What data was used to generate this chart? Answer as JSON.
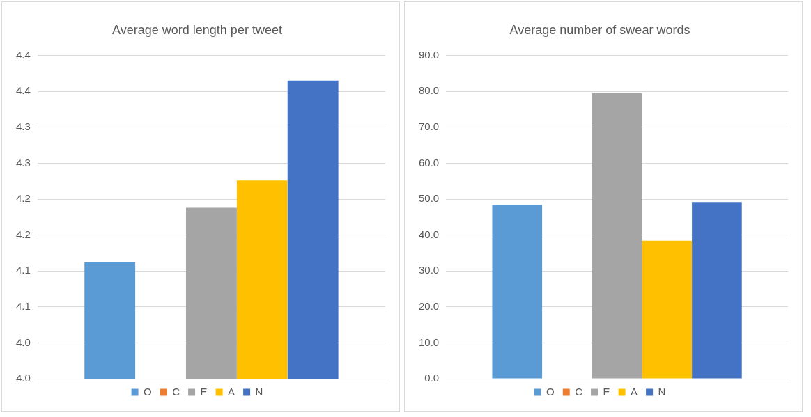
{
  "chart_data": [
    {
      "type": "bar",
      "title": "Average word length per tweet",
      "categories": [
        null
      ],
      "series": [
        {
          "name": "O",
          "color": "#5b9bd5",
          "values": [
            4.162
          ]
        },
        {
          "name": "C",
          "color": "#ed7d31",
          "values": [
            null
          ]
        },
        {
          "name": "E",
          "color": "#a5a5a5",
          "values": [
            4.238
          ]
        },
        {
          "name": "A",
          "color": "#ffc000",
          "values": [
            4.276
          ]
        },
        {
          "name": "N",
          "color": "#4472c4",
          "values": [
            4.415
          ]
        }
      ],
      "ylim": [
        4.0,
        4.45
      ],
      "yticks": [
        {
          "value": 4.0,
          "label": "4.0"
        },
        {
          "value": 4.05,
          "label": "4.0"
        },
        {
          "value": 4.1,
          "label": "4.1"
        },
        {
          "value": 4.15,
          "label": "4.1"
        },
        {
          "value": 4.2,
          "label": "4.2"
        },
        {
          "value": 4.25,
          "label": "4.2"
        },
        {
          "value": 4.3,
          "label": "4.3"
        },
        {
          "value": 4.35,
          "label": "4.3"
        },
        {
          "value": 4.4,
          "label": "4.4"
        },
        {
          "value": 4.45,
          "label": "4.4"
        }
      ],
      "grid": "y",
      "legend": "bottom",
      "tick_labels": "y"
    },
    {
      "type": "bar",
      "title": "Average number of swear words",
      "categories": [
        null
      ],
      "series": [
        {
          "name": "O",
          "color": "#5b9bd5",
          "values": [
            48.4
          ]
        },
        {
          "name": "C",
          "color": "#ed7d31",
          "values": [
            null
          ]
        },
        {
          "name": "E",
          "color": "#a5a5a5",
          "values": [
            79.5
          ]
        },
        {
          "name": "A",
          "color": "#ffc000",
          "values": [
            38.4
          ]
        },
        {
          "name": "N",
          "color": "#4472c4",
          "values": [
            49.2
          ]
        }
      ],
      "ylim": [
        0,
        90
      ],
      "yticks": [
        {
          "value": 0,
          "label": "0.0"
        },
        {
          "value": 10,
          "label": "10.0"
        },
        {
          "value": 20,
          "label": "20.0"
        },
        {
          "value": 30,
          "label": "30.0"
        },
        {
          "value": 40,
          "label": "40.0"
        },
        {
          "value": 50,
          "label": "50.0"
        },
        {
          "value": 60,
          "label": "60.0"
        },
        {
          "value": 70,
          "label": "70.0"
        },
        {
          "value": 80,
          "label": "80.0"
        },
        {
          "value": 90,
          "label": "90.0"
        }
      ],
      "grid": "y",
      "legend": "bottom",
      "tick_labels": "y"
    }
  ]
}
